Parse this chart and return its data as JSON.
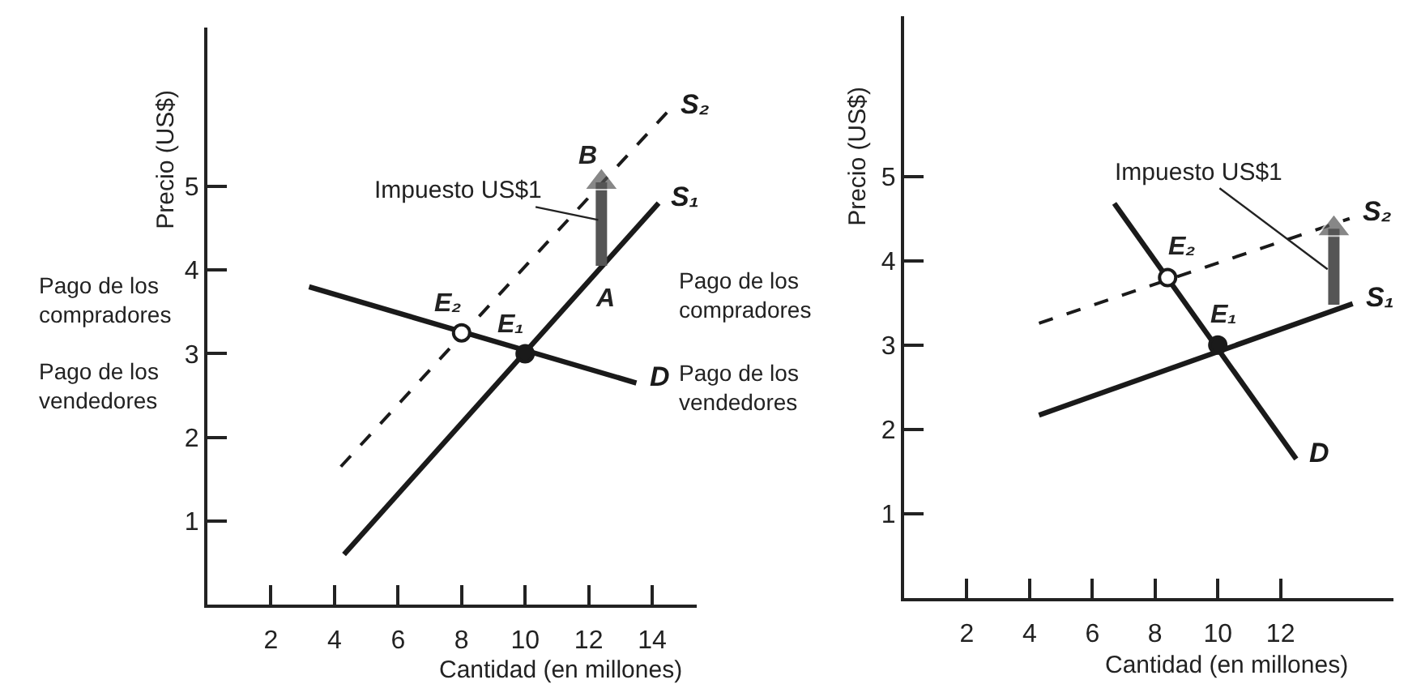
{
  "chart_data": [
    {
      "type": "line",
      "xlabel": "Cantidad (en millones)",
      "ylabel": "Precio (US$)",
      "xlim": [
        0,
        15.4
      ],
      "ylim": [
        0,
        6.9
      ],
      "xticks": [
        2,
        4,
        6,
        8,
        10,
        12,
        14
      ],
      "yticks": [
        1,
        2,
        3,
        4,
        5
      ],
      "grid": false,
      "legend": false,
      "line_style": "solid",
      "marker": "none",
      "series": [
        {
          "name": "D",
          "color": "#1a1a1a",
          "x": [
            3.2,
            13.5
          ],
          "values": [
            3.8,
            2.65
          ]
        },
        {
          "name": "S₁",
          "color": "#1a1a1a",
          "x": [
            4.3,
            14.2
          ],
          "values": [
            0.6,
            4.8
          ]
        },
        {
          "name": "S₂",
          "color": "#1a1a1a",
          "x": [
            4.2,
            14.5
          ],
          "values": [
            1.65,
            5.9
          ],
          "line_style": "dashed"
        },
        {
          "type": "scatter",
          "color": "#1a1a1a",
          "x": [
            10,
            8
          ],
          "values": [
            3,
            3.25
          ],
          "colors": [
            "#1a1a1a",
            "#ffffff"
          ],
          "marker": "circle"
        },
        {
          "color": "#555555",
          "x": [
            12.4,
            12.4
          ],
          "values": [
            4.05,
            5.05
          ],
          "marker": "triangle"
        }
      ],
      "annotations": [
        "Pago de los compradores",
        "Pago de los vendedores",
        {
          "text": "Impuesto US$1",
          "x": 12.3,
          "y": 4.6
        },
        {
          "text": "B",
          "x": 12.4,
          "y": 5.05
        },
        {
          "text": "A",
          "x": 12.4,
          "y": 4.05
        },
        {
          "text": "E₂",
          "x": 8,
          "y": 3.25
        },
        {
          "text": "E₁",
          "x": 10,
          "y": 3
        }
      ]
    },
    {
      "type": "line",
      "xlabel": "Cantidad (en millones)",
      "ylabel": "Precio (US$)",
      "xlim": [
        0,
        15.6
      ],
      "ylim": [
        0,
        6.9
      ],
      "xticks": [
        2,
        4,
        6,
        8,
        10,
        12
      ],
      "yticks": [
        1,
        2,
        3,
        4,
        5
      ],
      "grid": false,
      "legend": false,
      "line_style": "solid",
      "marker": "none",
      "series": [
        {
          "name": "D",
          "color": "#1a1a1a",
          "x": [
            6.7,
            12.5
          ],
          "values": [
            4.68,
            1.65
          ]
        },
        {
          "name": "S₁",
          "color": "#1a1a1a",
          "x": [
            4.3,
            14.3
          ],
          "values": [
            2.17,
            3.49
          ]
        },
        {
          "name": "S₂",
          "color": "#1a1a1a",
          "x": [
            4.3,
            14.2
          ],
          "values": [
            3.26,
            4.5
          ],
          "line_style": "dashed"
        },
        {
          "type": "scatter",
          "color": "#1a1a1a",
          "x": [
            10,
            8.4
          ],
          "values": [
            3,
            3.8
          ],
          "colors": [
            "#1a1a1a",
            "#ffffff"
          ],
          "marker": "circle"
        },
        {
          "color": "#555555",
          "x": [
            13.7,
            13.7
          ],
          "values": [
            3.48,
            4.38
          ],
          "marker": "triangle"
        }
      ],
      "annotations": [
        "Pago de los compradores",
        "Pago de los vendedores",
        {
          "text": "Impuesto US$1",
          "x": 13.5,
          "y": 3.9
        },
        {
          "text": "E₂",
          "x": 8.4,
          "y": 3.8
        },
        {
          "text": "E₁",
          "x": 10,
          "y": 3
        }
      ]
    }
  ]
}
